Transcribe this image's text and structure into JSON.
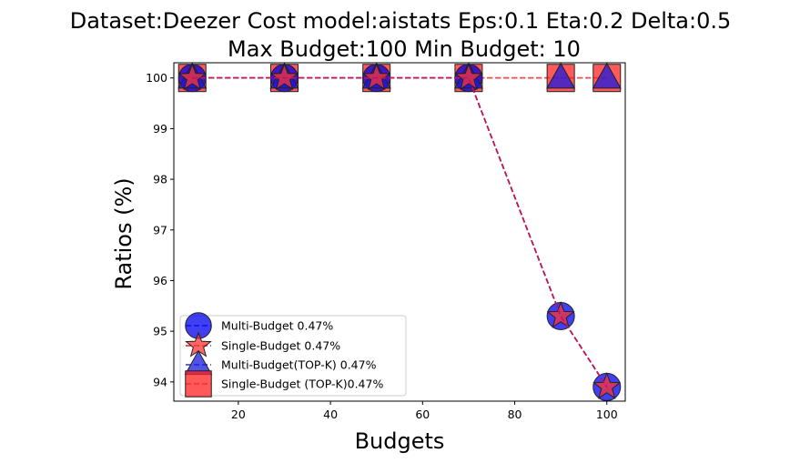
{
  "chart_data": {
    "type": "line",
    "title_line1": "Dataset:Deezer Cost model:aistats Eps:0.1 Eta:0.2 Delta:0.5",
    "title_line2": "Max Budget:100 Min Budget: 10",
    "xlabel": "Budgets",
    "ylabel": "Ratios (%)",
    "xlim": [
      6,
      104
    ],
    "ylim": [
      93.62,
      100.3
    ],
    "x_ticks": [
      20,
      40,
      60,
      80,
      100
    ],
    "y_ticks": [
      94,
      95,
      96,
      97,
      98,
      99,
      100
    ],
    "x_tick_labels": [
      "20",
      "40",
      "60",
      "80",
      "100"
    ],
    "y_tick_labels": [
      "94",
      "95",
      "96",
      "97",
      "98",
      "99",
      "100"
    ],
    "x": [
      10,
      30,
      50,
      70,
      90,
      100
    ],
    "grid": false,
    "legend_position": "lower-left",
    "series": [
      {
        "name": "Multi-Budget 0.47%",
        "marker": "circle",
        "color": "#0000ee",
        "line": "#3333ff",
        "values": [
          100,
          100,
          100,
          100,
          95.3,
          93.9
        ]
      },
      {
        "name": "Single-Budget 0.47%",
        "marker": "star",
        "color": "#ff3333",
        "line": "#dd2222",
        "values": [
          100,
          100,
          100,
          100,
          95.3,
          93.9
        ]
      },
      {
        "name": "Multi-Budget(TOP-K) 0.47%",
        "marker": "triangle",
        "color": "#1a1ae0",
        "line": "#3333cc",
        "values": [
          100,
          100,
          100,
          100,
          100,
          100
        ]
      },
      {
        "name": "Single-Budget (TOP-K)0.47%",
        "marker": "square",
        "color": "#ff2222",
        "line": "#ff4444",
        "values": [
          100,
          100,
          100,
          100,
          100,
          100
        ]
      }
    ]
  }
}
